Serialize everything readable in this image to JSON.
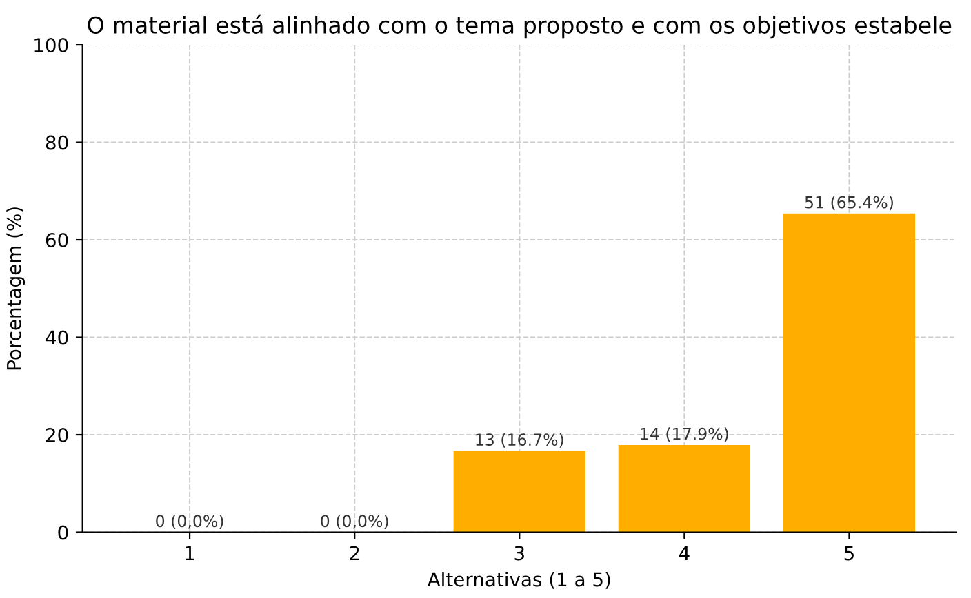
{
  "chart_data": {
    "type": "bar",
    "title": "O material está alinhado com o tema proposto e com os objetivos estabele",
    "xlabel": "Alternativas (1 a 5)",
    "ylabel": "Porcentagem (%)",
    "categories": [
      "1",
      "2",
      "3",
      "4",
      "5"
    ],
    "values": [
      0,
      0,
      16.7,
      17.9,
      65.4
    ],
    "color": "#ffae00",
    "value_labels": [
      "0 (0,0%)",
      "0 (0,0%)",
      "13 (16.7%)",
      "14 (17.9%)",
      "51 (65.4%)"
    ],
    "ylim": [
      0,
      100
    ],
    "yticks": [
      0,
      20,
      40,
      60,
      80,
      100
    ],
    "grid": true
  }
}
